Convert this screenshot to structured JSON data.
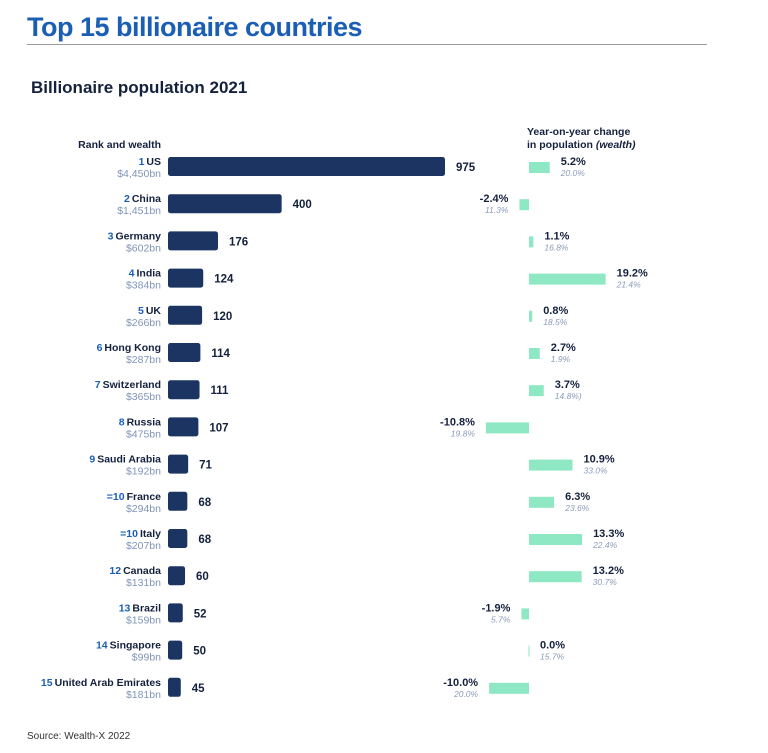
{
  "page": {
    "title": "Top 15 billionaire countries",
    "subtitle": "Billionaire population 2021",
    "source": "Source: Wealth-X 2022"
  },
  "colors": {
    "title": "#1a5fb4",
    "bar_primary": "#1b3461",
    "bar_change": "#8ee8c3",
    "rank_number": "#1a5fb4",
    "wealth_text": "#7f95b8",
    "change_wealth_text": "#8a9bb8",
    "text_dark": "#14213d"
  },
  "chart_data": {
    "type": "bar",
    "title": "Billionaire population 2021",
    "left_header": "Rank and wealth",
    "right_header_line1": "Year-on-year change",
    "right_header_line2": "in population",
    "right_header_italic": "(wealth)",
    "rows": [
      {
        "rank": "1",
        "country": "US",
        "wealth": "$4,450bn",
        "population": 975,
        "change": 5.2,
        "change_label": "5.2%",
        "wealth_change": "20.0%"
      },
      {
        "rank": "2",
        "country": "China",
        "wealth": "$1,451bn",
        "population": 400,
        "change": -2.4,
        "change_label": "-2.4%",
        "wealth_change": "11.3%"
      },
      {
        "rank": "3",
        "country": "Germany",
        "wealth": "$602bn",
        "population": 176,
        "change": 1.1,
        "change_label": "1.1%",
        "wealth_change": "16.8%"
      },
      {
        "rank": "4",
        "country": "India",
        "wealth": "$384bn",
        "population": 124,
        "change": 19.2,
        "change_label": "19.2%",
        "wealth_change": "21.4%"
      },
      {
        "rank": "5",
        "country": "UK",
        "wealth": "$266bn",
        "population": 120,
        "change": 0.8,
        "change_label": "0.8%",
        "wealth_change": "18.5%"
      },
      {
        "rank": "6",
        "country": "Hong Kong",
        "wealth": "$287bn",
        "population": 114,
        "change": 2.7,
        "change_label": "2.7%",
        "wealth_change": "1.9%"
      },
      {
        "rank": "7",
        "country": "Switzerland",
        "wealth": "$365bn",
        "population": 111,
        "change": 3.7,
        "change_label": "3.7%",
        "wealth_change": "14.8%)"
      },
      {
        "rank": "8",
        "country": "Russia",
        "wealth": "$475bn",
        "population": 107,
        "change": -10.8,
        "change_label": "-10.8%",
        "wealth_change": "19.8%"
      },
      {
        "rank": "9",
        "country": "Saudi Arabia",
        "wealth": "$192bn",
        "population": 71,
        "change": 10.9,
        "change_label": "10.9%",
        "wealth_change": "33.0%"
      },
      {
        "rank": "=10",
        "country": "France",
        "wealth": "$294bn",
        "population": 68,
        "change": 6.3,
        "change_label": "6.3%",
        "wealth_change": "23.6%"
      },
      {
        "rank": "=10",
        "country": "Italy",
        "wealth": "$207bn",
        "population": 68,
        "change": 13.3,
        "change_label": "13.3%",
        "wealth_change": "22.4%"
      },
      {
        "rank": "12",
        "country": "Canada",
        "wealth": "$131bn",
        "population": 60,
        "change": 13.2,
        "change_label": "13.2%",
        "wealth_change": "30.7%"
      },
      {
        "rank": "13",
        "country": "Brazil",
        "wealth": "$159bn",
        "population": 52,
        "change": -1.9,
        "change_label": "-1.9%",
        "wealth_change": "5.7%"
      },
      {
        "rank": "14",
        "country": "Singapore",
        "wealth": "$99bn",
        "population": 50,
        "change": 0.0,
        "change_label": "0.0%",
        "wealth_change": "15.7%"
      },
      {
        "rank": "15",
        "country": "United Arab Emirates",
        "wealth": "$181bn",
        "population": 45,
        "change": -10.0,
        "change_label": "-10.0%",
        "wealth_change": "20.0%"
      }
    ]
  }
}
